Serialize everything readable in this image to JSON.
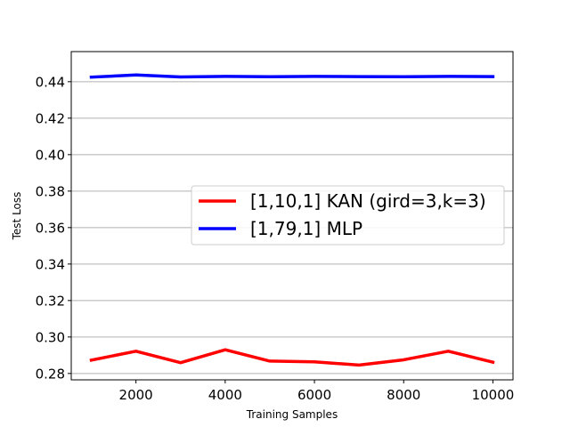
{
  "chart_data": {
    "type": "line",
    "title": "",
    "xlabel": "Training Samples",
    "ylabel": "Test Loss",
    "xlim": [
      550,
      10450
    ],
    "ylim": [
      0.2765,
      0.4565
    ],
    "x_ticks": [
      2000,
      4000,
      6000,
      8000,
      10000
    ],
    "y_ticks": [
      0.28,
      0.3,
      0.32,
      0.34,
      0.36,
      0.38,
      0.4,
      0.42,
      0.44
    ],
    "grid": {
      "y": true,
      "x": false,
      "color": "#b0b0b0"
    },
    "legend_position": "center-right",
    "x": [
      1000,
      2000,
      3000,
      4000,
      5000,
      6000,
      7000,
      8000,
      9000,
      10000
    ],
    "series": [
      {
        "name": "[1,10,1] KAN (gird=3,k=3)",
        "color": "#ff0000",
        "values": [
          0.2873,
          0.2922,
          0.2859,
          0.293,
          0.2868,
          0.2864,
          0.2846,
          0.2875,
          0.2922,
          0.2862
        ]
      },
      {
        "name": "[1,79,1] MLP",
        "color": "#0000ff",
        "values": [
          0.4425,
          0.4437,
          0.4426,
          0.4429,
          0.4427,
          0.4429,
          0.4428,
          0.4427,
          0.4429,
          0.4428
        ]
      }
    ]
  }
}
